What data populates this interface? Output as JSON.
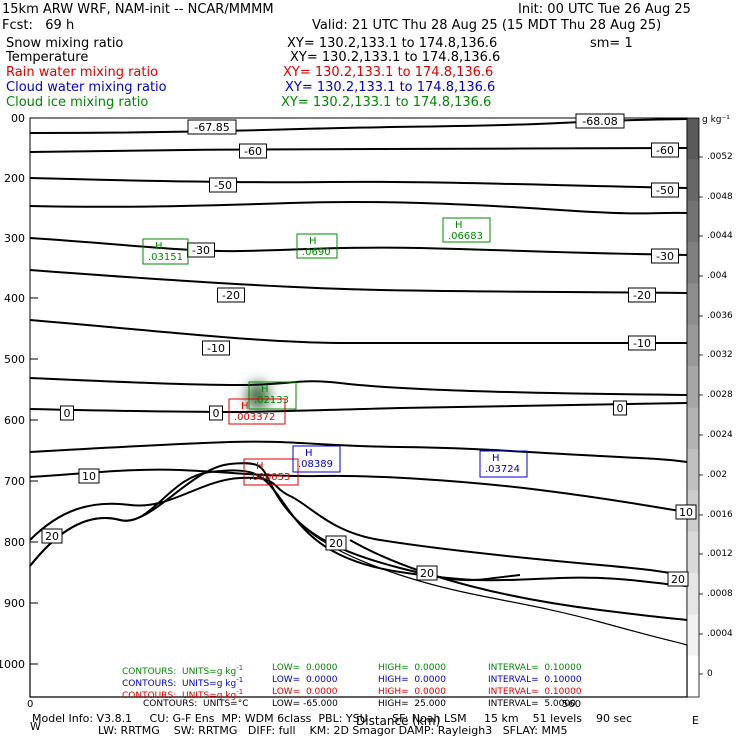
{
  "header": {
    "model_line": "15km ARW WRF, NAM-init -- NCAR/MMMM",
    "init_line": "Init: 00 UTC Tue 26 Aug 25",
    "fcst_line": "Fcst:   69 h",
    "valid_line": "Valid: 21 UTC Thu 28 Aug 25 (15 MDT Thu 28 Aug 25)",
    "fields": [
      {
        "name": "Snow mixing ratio",
        "xy": "XY= 130.2,133.1 to 174.8,136.6",
        "extra": "sm= 1",
        "color": "#000000"
      },
      {
        "name": "Temperature",
        "xy": "XY= 130.2,133.1 to 174.8,136.6",
        "extra": "",
        "color": "#000000"
      },
      {
        "name": "Rain water mixing ratio",
        "xy": "XY= 130.2,133.1 to 174.8,136.6",
        "extra": "",
        "color": "#e00000"
      },
      {
        "name": "Cloud water mixing ratio",
        "xy": "XY= 130.2,133.1 to 174.8,136.6",
        "extra": "",
        "color": "#0000cc"
      },
      {
        "name": "Cloud ice mixing ratio",
        "xy": "XY= 130.2,133.1 to 174.8,136.6",
        "extra": "",
        "color": "#008800"
      }
    ]
  },
  "colorbar": {
    "unit_label": "g kg⁻¹",
    "ticks": [
      ".0052",
      ".0048",
      ".0044",
      ".004",
      ".0036",
      ".0032",
      ".0028",
      ".0024",
      ".002",
      ".0016",
      ".0012",
      ".0008",
      ".0004",
      "0"
    ]
  },
  "contour_summary": [
    {
      "label": "CONTOURS:  UNITS=g kg",
      "sup": "-1",
      "low": "LOW=  0.0000",
      "high": "HIGH=  0.0000",
      "interval": "INTERVAL=  0.10000",
      "color": "#008800"
    },
    {
      "label": "CONTOURS:  UNITS=g kg",
      "sup": "-1",
      "low": "LOW=  0.0000",
      "high": "HIGH=  0.0000",
      "interval": "INTERVAL=  0.10000",
      "color": "#0000cc"
    },
    {
      "label": "CONTOURS:  UNITS=g kg",
      "sup": "-1",
      "low": "LOW=  0.0000",
      "high": "HIGH=  0.0000",
      "interval": "INTERVAL=  0.10000",
      "color": "#e00000"
    },
    {
      "label": "CONTOURS:  UNITS=°C",
      "sup": "",
      "low": "LOW= -65.000",
      "high": "HIGH=  25.000",
      "interval": "INTERVAL=  5.0000",
      "color": "#000000"
    }
  ],
  "footer": {
    "line1": "Model Info: V3.8.1     CU: G-F Ens  MP: WDM 6class  PBL: YSU       SF: Noah LSM     15 km    51 levels    90 sec",
    "line2": "LW: RRTMG    SW: RRTMG   DIFF: full    KM: 2D Smagor DAMP: Rayleigh3   SFLAY: MM5",
    "xaxis_title": "Distance (km)",
    "x_tick_start": "0",
    "x_tick_end": "560",
    "left_end": "W",
    "right_end": "E"
  },
  "chart_data": {
    "type": "contour cross-section",
    "x_range_km": [
      0,
      560
    ],
    "y_axis": "pressure (hPa)",
    "y_ticks": [
      "00",
      "200",
      "300",
      "400",
      "500",
      "600",
      "700",
      "800",
      "900",
      "1000"
    ],
    "temperature_contour_labels": [
      "-67.85",
      "-68.08",
      "-60",
      "-60",
      "-50",
      "-50",
      "-30",
      "-30",
      "-20",
      "-20",
      "-10",
      "-10",
      "0",
      "0",
      "0",
      "10",
      "10",
      "20",
      "20",
      "20",
      "20"
    ],
    "maxima": [
      {
        "field": "cloud ice",
        "label": "H",
        "value": ".03151"
      },
      {
        "field": "cloud ice",
        "label": "H",
        "value": ".0690"
      },
      {
        "field": "cloud ice",
        "label": "H",
        "value": ".06683"
      },
      {
        "field": "cloud ice",
        "label": "H",
        "value": ".02133"
      },
      {
        "field": "rain water",
        "label": "H",
        "value": ".003372"
      },
      {
        "field": "rain water",
        "label": "H",
        "value": ".000053"
      },
      {
        "field": "cloud water",
        "label": "H",
        "value": ".08389"
      },
      {
        "field": "cloud water",
        "label": "H",
        "value": ".03724"
      }
    ],
    "colors": {
      "ice": "#008800",
      "rain": "#e00000",
      "cloud_water": "#0000cc",
      "temperature": "#000000"
    }
  }
}
